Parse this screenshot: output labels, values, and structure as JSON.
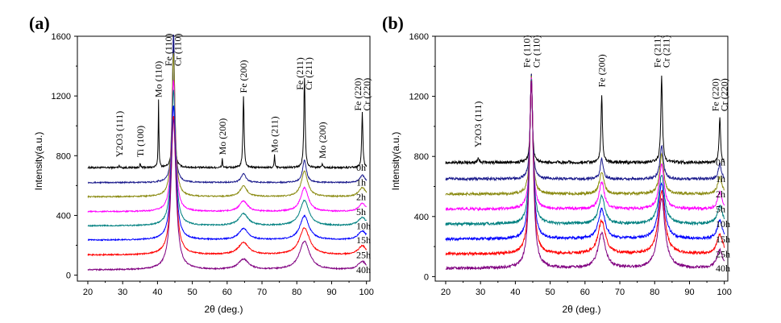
{
  "chart_data": [
    {
      "panel_label": "(a)",
      "type": "line",
      "xlabel": "2θ (deg.)",
      "ylabel": "Intensity(a.u.)",
      "xlim": [
        17,
        101
      ],
      "ylim": [
        -40,
        1600
      ],
      "xticks": [
        20,
        30,
        40,
        50,
        60,
        70,
        80,
        90,
        100
      ],
      "yticks": [
        0,
        400,
        800,
        1200,
        1600
      ],
      "peaks": [
        {
          "pos": 29,
          "width": 0.15,
          "h": [
            15,
            0,
            0,
            0,
            0,
            0,
            0,
            0
          ]
        },
        {
          "pos": 35,
          "width": 0.15,
          "h": [
            25,
            0,
            0,
            0,
            0,
            0,
            0,
            0
          ]
        },
        {
          "pos": 40.3,
          "width": 0.12,
          "h": [
            450,
            8,
            0,
            0,
            0,
            0,
            0,
            0
          ]
        },
        {
          "pos": 44.6,
          "width": 0.25,
          "h": [
            950,
            1010,
            960,
            880,
            910,
            900,
            930,
            1010
          ],
          "widen": [
            1,
            1.6,
            2.2,
            2.6,
            2.8,
            3,
            3.2,
            3.4
          ]
        },
        {
          "pos": 58.6,
          "width": 0.12,
          "h": [
            60,
            0,
            0,
            0,
            0,
            0,
            0,
            0
          ]
        },
        {
          "pos": 64.7,
          "width": 0.2,
          "h": [
            480,
            60,
            70,
            70,
            80,
            75,
            80,
            70
          ],
          "widen": [
            1,
            4,
            6,
            7,
            8,
            8,
            9,
            9
          ]
        },
        {
          "pos": 73.6,
          "width": 0.12,
          "h": [
            85,
            0,
            0,
            0,
            0,
            0,
            0,
            0
          ]
        },
        {
          "pos": 82.2,
          "width": 0.22,
          "h": [
            600,
            150,
            170,
            160,
            170,
            160,
            180,
            190
          ],
          "widen": [
            1,
            3,
            5,
            6,
            7,
            7,
            8,
            8
          ]
        },
        {
          "pos": 87.3,
          "width": 0.15,
          "h": [
            30,
            0,
            0,
            0,
            0,
            0,
            0,
            0
          ]
        },
        {
          "pos": 98.8,
          "width": 0.2,
          "h": [
            370,
            50,
            60,
            55,
            55,
            60,
            60,
            55
          ],
          "widen": [
            1,
            4,
            6,
            6,
            7,
            7,
            7,
            7
          ]
        }
      ],
      "series": [
        {
          "name": "0h",
          "color": "#000000",
          "baseline": 720,
          "noise": 6
        },
        {
          "name": "1h",
          "color": "#1a1a8c",
          "baseline": 620,
          "noise": 4
        },
        {
          "name": "2h",
          "color": "#8a8a10",
          "baseline": 525,
          "noise": 4
        },
        {
          "name": "5h",
          "color": "#ff00ff",
          "baseline": 425,
          "noise": 4
        },
        {
          "name": "10h",
          "color": "#008080",
          "baseline": 330,
          "noise": 4
        },
        {
          "name": "15h",
          "color": "#0000ff",
          "baseline": 235,
          "noise": 4
        },
        {
          "name": "25h",
          "color": "#ff0000",
          "baseline": 135,
          "noise": 4
        },
        {
          "name": "40h",
          "color": "#800080",
          "baseline": 35,
          "noise": 4
        }
      ],
      "annotations": [
        {
          "text": "Y2O3 (111)",
          "x": 29,
          "y": 790
        },
        {
          "text": "Ti (100)",
          "x": 35,
          "y": 790
        },
        {
          "text": "Mo (110)",
          "x": 40.3,
          "y": 1190
        },
        {
          "text": "Fe (110)",
          "x": 43.2,
          "y": 1400
        },
        {
          "text": "Cr (110)",
          "x": 45.8,
          "y": 1400
        },
        {
          "text": "Mo (200)",
          "x": 58.6,
          "y": 805
        },
        {
          "text": "Fe (200)",
          "x": 64.7,
          "y": 1220
        },
        {
          "text": "Mo (211)",
          "x": 73.6,
          "y": 820
        },
        {
          "text": "Fe (211)",
          "x": 80.9,
          "y": 1240
        },
        {
          "text": "Cr (211)",
          "x": 83.4,
          "y": 1240
        },
        {
          "text": "Mo (200)",
          "x": 87.3,
          "y": 780
        },
        {
          "text": "Fe (220)",
          "x": 97.5,
          "y": 1100
        },
        {
          "text": "Cr (220)",
          "x": 100.1,
          "y": 1100
        }
      ]
    },
    {
      "panel_label": "(b)",
      "type": "line",
      "xlabel": "2θ (deg.)",
      "ylabel": "Intensity(a.u.)",
      "xlim": [
        17,
        101
      ],
      "ylim": [
        -30,
        1600
      ],
      "xticks": [
        20,
        30,
        40,
        50,
        60,
        70,
        80,
        90,
        100
      ],
      "yticks": [
        0,
        400,
        800,
        1200,
        1600
      ],
      "peaks": [
        {
          "pos": 29.3,
          "width": 0.2,
          "h": [
            30,
            0,
            0,
            0,
            0,
            0,
            0,
            0
          ]
        },
        {
          "pos": 44.6,
          "width": 0.3,
          "h": [
            600,
            690,
            780,
            870,
            960,
            1050,
            1150,
            1250
          ],
          "widen": [
            1,
            1.3,
            1.5,
            1.7,
            1.9,
            2.0,
            2.1,
            2.2
          ]
        },
        {
          "pos": 64.8,
          "width": 0.25,
          "h": [
            440,
            130,
            150,
            180,
            190,
            200,
            220,
            230
          ],
          "widen": [
            1,
            2,
            3,
            3.5,
            4,
            4.5,
            5,
            5
          ]
        },
        {
          "pos": 82.0,
          "width": 0.28,
          "h": [
            570,
            220,
            260,
            300,
            330,
            370,
            420,
            460
          ],
          "widen": [
            1,
            2,
            2.5,
            3,
            3.5,
            3.8,
            4,
            4.2
          ]
        },
        {
          "pos": 98.7,
          "width": 0.25,
          "h": [
            300,
            100,
            110,
            110,
            120,
            120,
            130,
            120
          ],
          "widen": [
            1,
            2,
            3,
            3,
            3.5,
            3.5,
            4,
            4
          ]
        }
      ],
      "series": [
        {
          "name": "0h",
          "color": "#000000",
          "baseline": 760,
          "noise": 10
        },
        {
          "name": "1h",
          "color": "#1a1a8c",
          "baseline": 650,
          "noise": 9
        },
        {
          "name": "2h",
          "color": "#8a8a10",
          "baseline": 550,
          "noise": 9
        },
        {
          "name": "5h",
          "color": "#ff00ff",
          "baseline": 450,
          "noise": 9
        },
        {
          "name": "10h",
          "color": "#008080",
          "baseline": 350,
          "noise": 9
        },
        {
          "name": "15h",
          "color": "#0000ff",
          "baseline": 250,
          "noise": 9
        },
        {
          "name": "25h",
          "color": "#ff0000",
          "baseline": 150,
          "noise": 9
        },
        {
          "name": "40h",
          "color": "#800080",
          "baseline": 55,
          "noise": 9
        }
      ],
      "annotations": [
        {
          "text": "Y2O3 (111)",
          "x": 29.3,
          "y": 860
        },
        {
          "text": "Fe (110)",
          "x": 43.3,
          "y": 1390
        },
        {
          "text": "Cr (110)",
          "x": 46.0,
          "y": 1390
        },
        {
          "text": "Fe (200)",
          "x": 64.8,
          "y": 1260
        },
        {
          "text": "Fe (211)",
          "x": 80.7,
          "y": 1390
        },
        {
          "text": "Cr (211)",
          "x": 83.3,
          "y": 1390
        },
        {
          "text": "Fe (220)",
          "x": 97.4,
          "y": 1100
        },
        {
          "text": "Cr (220)",
          "x": 100.0,
          "y": 1100
        }
      ]
    }
  ]
}
